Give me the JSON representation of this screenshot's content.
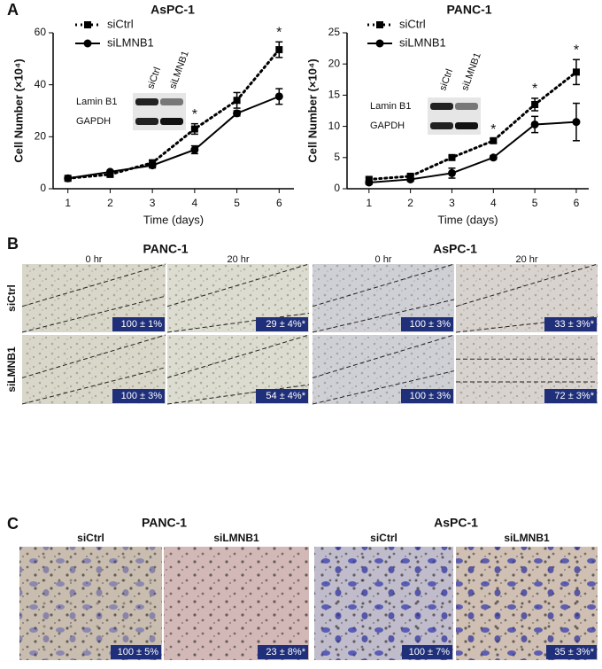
{
  "panel_labels": [
    "A",
    "B",
    "C"
  ],
  "chart_data": [
    {
      "type": "line",
      "title": "AsPC-1",
      "x_label": "Time (days)",
      "y_label": "Cell Number (×10⁴)",
      "x": [
        1,
        2,
        3,
        4,
        5,
        6
      ],
      "xlim": [
        0.65,
        6.35
      ],
      "xticks": [
        1,
        2,
        3,
        4,
        5,
        6
      ],
      "ylim": [
        0,
        60
      ],
      "yticks": [
        0,
        20,
        40,
        60
      ],
      "series": [
        {
          "name": "siCtrl",
          "color": "#000000",
          "line_style": "dotted",
          "marker": "square",
          "values": [
            4,
            5.5,
            10,
            23,
            34,
            53.5
          ],
          "errors": [
            0.5,
            0.8,
            1,
            2,
            3,
            3
          ]
        },
        {
          "name": "siLMNB1",
          "color": "#000000",
          "line_style": "solid",
          "marker": "circle",
          "values": [
            4,
            6.5,
            9,
            15,
            29,
            35.5
          ],
          "errors": [
            0.5,
            0.5,
            1,
            1.5,
            1,
            3
          ]
        }
      ],
      "annotations": [
        {
          "text": "*",
          "x": 4
        },
        {
          "text": "*",
          "x": 6
        }
      ],
      "inset_blot": {
        "lanes": [
          "siCtrl",
          "siLMNB1"
        ],
        "rows": [
          "Lamin B1",
          "GAPDH"
        ]
      }
    },
    {
      "type": "line",
      "title": "PANC-1",
      "x_label": "Time (days)",
      "y_label": "Cell Number (×10⁴)",
      "x": [
        1,
        2,
        3,
        4,
        5,
        6
      ],
      "xlim": [
        0.47,
        6.3
      ],
      "xticks": [
        1,
        2,
        3,
        4,
        5,
        6
      ],
      "ylim": [
        0,
        25
      ],
      "yticks": [
        0,
        5,
        10,
        15,
        20,
        25
      ],
      "series": [
        {
          "name": "siCtrl",
          "color": "#000000",
          "line_style": "dotted",
          "marker": "square",
          "values": [
            1.5,
            2,
            5,
            7.7,
            13.5,
            18.7
          ],
          "errors": [
            0.3,
            0.3,
            0.3,
            0.3,
            1,
            2
          ]
        },
        {
          "name": "siLMNB1",
          "color": "#000000",
          "line_style": "solid",
          "marker": "circle",
          "values": [
            1,
            1.5,
            2.5,
            5,
            10.3,
            10.7
          ],
          "errors": [
            0.3,
            0.3,
            0.8,
            0.3,
            1.3,
            3
          ]
        }
      ],
      "annotations": [
        {
          "text": "*",
          "x": 4
        },
        {
          "text": "*",
          "x": 5
        },
        {
          "text": "*",
          "x": 6
        }
      ],
      "inset_blot": {
        "lanes": [
          "siCtrl",
          "siLMNB1"
        ],
        "rows": [
          "Lamin B1",
          "GAPDH"
        ]
      }
    }
  ],
  "wound_healing": {
    "cell_lines": [
      {
        "name": "PANC-1",
        "times": [
          "0 hr",
          "20 hr"
        ]
      },
      {
        "name": "AsPC-1",
        "times": [
          "0 hr",
          "20 hr"
        ]
      }
    ],
    "rows": [
      "siCtrl",
      "siLMNB1"
    ],
    "images": [
      [
        "100 ± 1%",
        "29 ± 4%*",
        "100 ± 3%",
        "33 ± 3%*"
      ],
      [
        "100 ± 3%",
        "54 ± 4%*",
        "100 ± 3%",
        "72 ± 3%*"
      ]
    ]
  },
  "invasion": {
    "cell_lines": [
      {
        "name": "PANC-1",
        "conditions": [
          "siCtrl",
          "siLMNB1"
        ],
        "labels": [
          "100 ± 5%",
          "23 ± 8%*"
        ]
      },
      {
        "name": "AsPC-1",
        "conditions": [
          "siCtrl",
          "siLMNB1"
        ],
        "labels": [
          "100 ± 7%",
          "35 ± 3%*"
        ]
      }
    ]
  }
}
